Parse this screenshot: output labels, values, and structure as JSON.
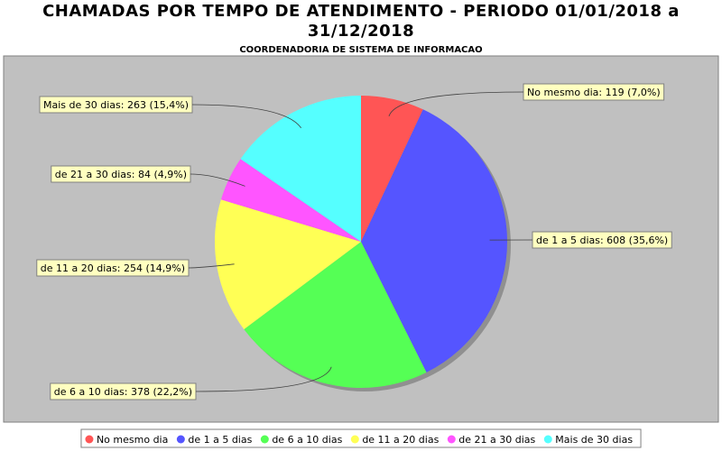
{
  "chart_data": {
    "type": "pie",
    "title": "CHAMADAS POR TEMPO DE ATENDIMENTO - PERIODO 01/01/2018 a 31/12/2018",
    "subtitle": "COORDENADORIA DE SISTEMA DE INFORMACAO",
    "categories": [
      "No mesmo dia",
      "de 1 a 5 dias",
      "de 6 a 10 dias",
      "de 11 a 20 dias",
      "de 21 a 30 dias",
      "Mais de 30 dias"
    ],
    "values": [
      119,
      608,
      378,
      254,
      84,
      263
    ],
    "value_labels": [
      "No mesmo dia: 119 (7,0%)",
      "de 1 a 5 dias: 608 (35,6%)",
      "de 6 a 10 dias: 378 (22,2%)",
      "de 11 a 20 dias: 254 (14,9%)",
      "de 21 a 30 dias: 84 (4,9%)",
      "Mais de 30 dias: 263 (15,4%)"
    ],
    "colors": [
      "#ff5555",
      "#5555ff",
      "#55ff55",
      "#ffff55",
      "#ff55ff",
      "#55ffff"
    ],
    "legend": "bottom"
  }
}
